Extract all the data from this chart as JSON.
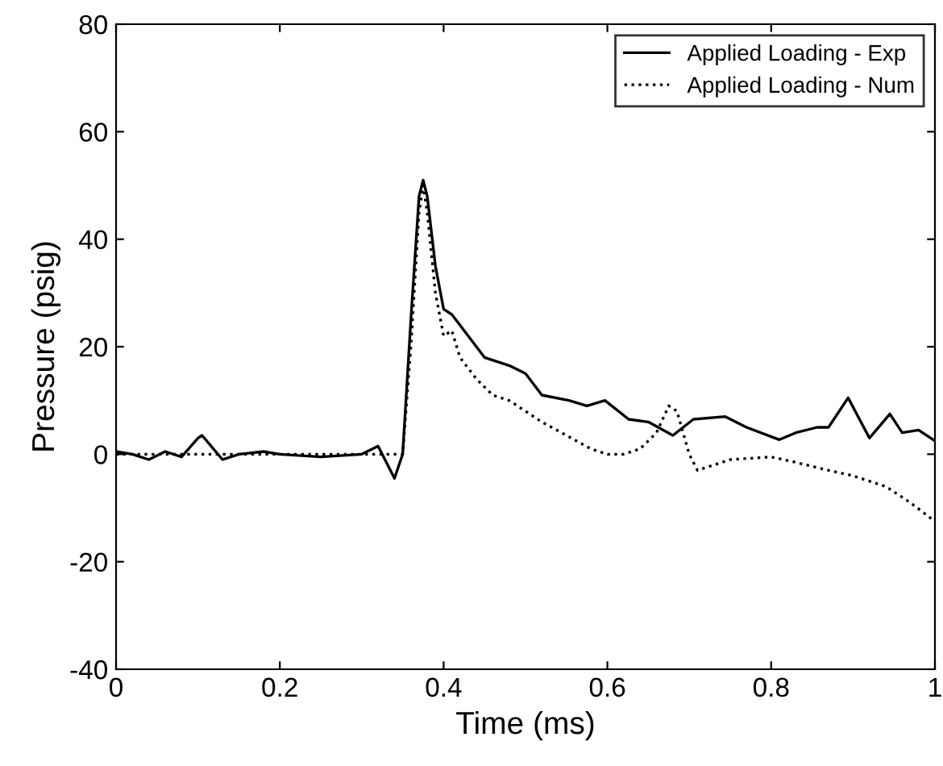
{
  "chart_data": {
    "type": "line",
    "xlabel": "Time (ms)",
    "ylabel": "Pressure (psig)",
    "xlim": [
      0,
      1
    ],
    "ylim": [
      -40,
      80
    ],
    "xticks": [
      0,
      0.2,
      0.4,
      0.6,
      0.8,
      1
    ],
    "yticks": [
      -40,
      -20,
      0,
      20,
      40,
      60,
      80
    ],
    "grid": false,
    "legend": "top right",
    "series": [
      {
        "name": "Applied Loading - Exp",
        "color": "#000000",
        "line_style": "solid",
        "x": [
          0,
          0.02,
          0.04,
          0.06,
          0.08,
          0.1,
          0.105,
          0.13,
          0.15,
          0.18,
          0.2,
          0.25,
          0.3,
          0.32,
          0.34,
          0.35,
          0.36,
          0.37,
          0.375,
          0.38,
          0.39,
          0.4,
          0.41,
          0.42,
          0.45,
          0.48,
          0.5,
          0.52,
          0.553,
          0.575,
          0.597,
          0.626,
          0.65,
          0.68,
          0.705,
          0.744,
          0.77,
          0.81,
          0.83,
          0.856,
          0.87,
          0.894,
          0.92,
          0.945,
          0.96,
          0.98,
          1
        ],
        "values": [
          0.5,
          0,
          -1,
          0.5,
          -0.5,
          3,
          3.5,
          -1,
          0,
          0.5,
          0,
          -0.5,
          0,
          1.5,
          -4.5,
          0,
          25,
          48,
          51,
          48,
          35,
          27,
          26,
          24,
          18,
          16.5,
          15,
          11,
          10,
          9,
          10,
          6.5,
          6,
          3.5,
          6.5,
          7,
          5,
          2.7,
          4,
          5,
          5,
          10.5,
          3,
          7.5,
          4,
          4.5,
          2.5
        ]
      },
      {
        "name": "Applied Loading - Num",
        "color": "#000000",
        "line_style": "dotted",
        "x": [
          0,
          0.1,
          0.2,
          0.3,
          0.35,
          0.36,
          0.37,
          0.375,
          0.38,
          0.39,
          0.4,
          0.41,
          0.42,
          0.44,
          0.46,
          0.48,
          0.5,
          0.52,
          0.55,
          0.58,
          0.6,
          0.62,
          0.64,
          0.66,
          0.675,
          0.685,
          0.7,
          0.71,
          0.73,
          0.75,
          0.8,
          0.83,
          0.87,
          0.9,
          0.94,
          0.97,
          1
        ],
        "values": [
          0,
          0,
          0,
          0,
          0,
          20,
          45,
          50,
          45,
          30,
          22,
          23,
          18,
          14,
          11,
          10,
          8,
          6,
          3.5,
          1,
          0,
          0,
          1,
          4,
          9,
          8,
          0,
          -3,
          -2,
          -1,
          -0.5,
          -1.5,
          -3,
          -4,
          -6,
          -9,
          -12.5
        ]
      }
    ]
  }
}
